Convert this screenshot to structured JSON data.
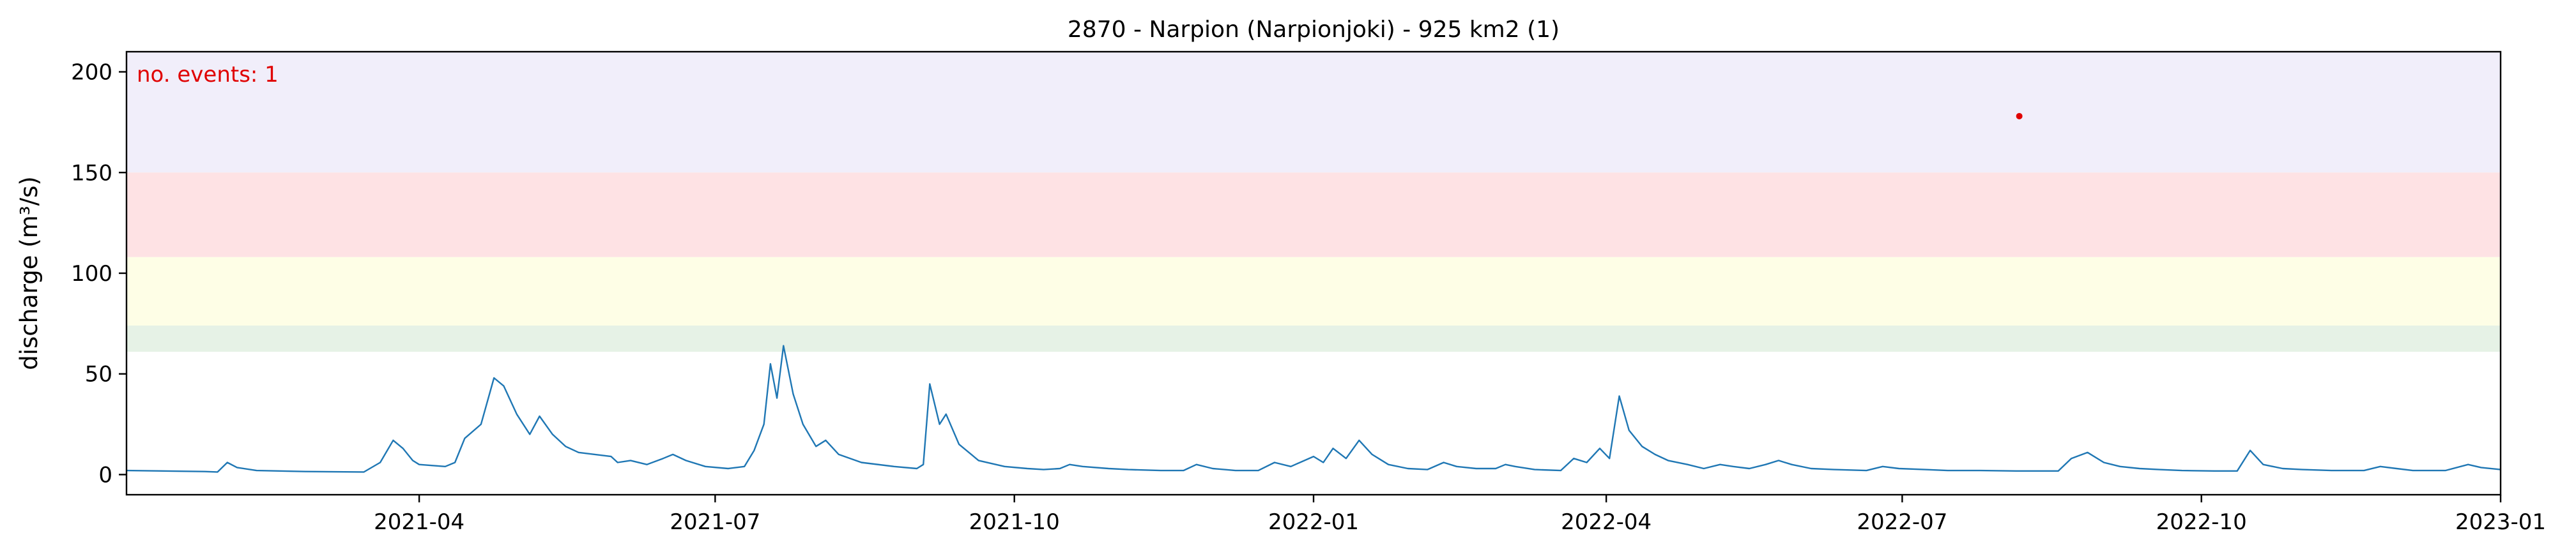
{
  "chart_data": {
    "type": "line",
    "title": "2870 - Narpion (Narpionjoki) - 925 km2 (1)",
    "xlabel": "",
    "ylabel": "discharge (m³/s)",
    "xlim": [
      "2021-01-01",
      "2023-01-01"
    ],
    "ylim": [
      -10,
      210
    ],
    "x_ticks": [
      "2021-04",
      "2021-07",
      "2021-10",
      "2022-01",
      "2022-04",
      "2022-07",
      "2022-10",
      "2023-01"
    ],
    "y_ticks": [
      0,
      50,
      100,
      150,
      200
    ],
    "grid": false,
    "annotation": "no. events: 1",
    "colors": {
      "line": "#1f77b4",
      "event": "#e00000",
      "annotation": "#e00000",
      "band_top": "#f1eefa",
      "band_red": "#fee2e4",
      "band_yellow": "#fefee6",
      "band_green": "#e6f2e6"
    },
    "threshold_bands": [
      {
        "from": 150,
        "to": 210,
        "color": "#f1eefa"
      },
      {
        "from": 108,
        "to": 150,
        "color": "#fee2e4"
      },
      {
        "from": 74,
        "to": 108,
        "color": "#fefee6"
      },
      {
        "from": 61,
        "to": 74,
        "color": "#e6f2e6"
      }
    ],
    "events": [
      {
        "x": "2022-08-06",
        "y": 178
      }
    ],
    "series": [
      {
        "points": [
          [
            "2021-01-01",
            2
          ],
          [
            "2021-01-25",
            1.5
          ],
          [
            "2021-01-29",
            1.3
          ],
          [
            "2021-02-01",
            6
          ],
          [
            "2021-02-04",
            3.5
          ],
          [
            "2021-02-10",
            2
          ],
          [
            "2021-02-25",
            1.5
          ],
          [
            "2021-03-15",
            1.3
          ],
          [
            "2021-03-20",
            6
          ],
          [
            "2021-03-24",
            17
          ],
          [
            "2021-03-27",
            13
          ],
          [
            "2021-03-30",
            7
          ],
          [
            "2021-04-01",
            5
          ],
          [
            "2021-04-09",
            4
          ],
          [
            "2021-04-12",
            6
          ],
          [
            "2021-04-15",
            18
          ],
          [
            "2021-04-20",
            25
          ],
          [
            "2021-04-24",
            48
          ],
          [
            "2021-04-27",
            44
          ],
          [
            "2021-05-01",
            30
          ],
          [
            "2021-05-05",
            20
          ],
          [
            "2021-05-08",
            29
          ],
          [
            "2021-05-12",
            20
          ],
          [
            "2021-05-16",
            14
          ],
          [
            "2021-05-20",
            11
          ],
          [
            "2021-05-25",
            10
          ],
          [
            "2021-05-30",
            9
          ],
          [
            "2021-06-01",
            6
          ],
          [
            "2021-06-05",
            7
          ],
          [
            "2021-06-10",
            5
          ],
          [
            "2021-06-15",
            8
          ],
          [
            "2021-06-18",
            10
          ],
          [
            "2021-06-22",
            7
          ],
          [
            "2021-06-28",
            4
          ],
          [
            "2021-07-05",
            3
          ],
          [
            "2021-07-10",
            4
          ],
          [
            "2021-07-13",
            12
          ],
          [
            "2021-07-16",
            25
          ],
          [
            "2021-07-18",
            55
          ],
          [
            "2021-07-20",
            38
          ],
          [
            "2021-07-22",
            64
          ],
          [
            "2021-07-25",
            40
          ],
          [
            "2021-07-28",
            25
          ],
          [
            "2021-08-01",
            14
          ],
          [
            "2021-08-04",
            17
          ],
          [
            "2021-08-08",
            10
          ],
          [
            "2021-08-15",
            6
          ],
          [
            "2021-08-25",
            4
          ],
          [
            "2021-09-01",
            3
          ],
          [
            "2021-09-03",
            5
          ],
          [
            "2021-09-05",
            45
          ],
          [
            "2021-09-08",
            25
          ],
          [
            "2021-09-10",
            30
          ],
          [
            "2021-09-14",
            15
          ],
          [
            "2021-09-20",
            7
          ],
          [
            "2021-09-28",
            4
          ],
          [
            "2021-10-05",
            3
          ],
          [
            "2021-10-10",
            2.5
          ],
          [
            "2021-10-15",
            3
          ],
          [
            "2021-10-18",
            5
          ],
          [
            "2021-10-22",
            4
          ],
          [
            "2021-10-30",
            3
          ],
          [
            "2021-11-05",
            2.5
          ],
          [
            "2021-11-15",
            2
          ],
          [
            "2021-11-22",
            2
          ],
          [
            "2021-11-26",
            5
          ],
          [
            "2021-12-01",
            3
          ],
          [
            "2021-12-08",
            2
          ],
          [
            "2021-12-15",
            2
          ],
          [
            "2021-12-20",
            6
          ],
          [
            "2021-12-25",
            4
          ],
          [
            "2022-01-01",
            9
          ],
          [
            "2022-01-04",
            6
          ],
          [
            "2022-01-07",
            13
          ],
          [
            "2022-01-11",
            8
          ],
          [
            "2022-01-15",
            17
          ],
          [
            "2022-01-19",
            10
          ],
          [
            "2022-01-24",
            5
          ],
          [
            "2022-01-30",
            3
          ],
          [
            "2022-02-05",
            2.5
          ],
          [
            "2022-02-10",
            6
          ],
          [
            "2022-02-14",
            4
          ],
          [
            "2022-02-20",
            3
          ],
          [
            "2022-02-26",
            3
          ],
          [
            "2022-03-01",
            5
          ],
          [
            "2022-03-04",
            4
          ],
          [
            "2022-03-10",
            2.5
          ],
          [
            "2022-03-18",
            2
          ],
          [
            "2022-03-22",
            8
          ],
          [
            "2022-03-26",
            6
          ],
          [
            "2022-03-30",
            13
          ],
          [
            "2022-04-02",
            8
          ],
          [
            "2022-04-05",
            39
          ],
          [
            "2022-04-08",
            22
          ],
          [
            "2022-04-12",
            14
          ],
          [
            "2022-04-16",
            10
          ],
          [
            "2022-04-20",
            7
          ],
          [
            "2022-04-26",
            5
          ],
          [
            "2022-05-01",
            3
          ],
          [
            "2022-05-06",
            5
          ],
          [
            "2022-05-10",
            4
          ],
          [
            "2022-05-15",
            3
          ],
          [
            "2022-05-20",
            5
          ],
          [
            "2022-05-24",
            7
          ],
          [
            "2022-05-28",
            5
          ],
          [
            "2022-06-03",
            3
          ],
          [
            "2022-06-10",
            2.5
          ],
          [
            "2022-06-20",
            2
          ],
          [
            "2022-06-25",
            4
          ],
          [
            "2022-06-30",
            3
          ],
          [
            "2022-07-08",
            2.5
          ],
          [
            "2022-07-15",
            2
          ],
          [
            "2022-07-25",
            2
          ],
          [
            "2022-08-05",
            1.8
          ],
          [
            "2022-08-18",
            1.8
          ],
          [
            "2022-08-22",
            8
          ],
          [
            "2022-08-27",
            11
          ],
          [
            "2022-09-01",
            6
          ],
          [
            "2022-09-06",
            4
          ],
          [
            "2022-09-12",
            3
          ],
          [
            "2022-09-18",
            2.5
          ],
          [
            "2022-09-25",
            2
          ],
          [
            "2022-10-05",
            1.8
          ],
          [
            "2022-10-12",
            1.8
          ],
          [
            "2022-10-16",
            12
          ],
          [
            "2022-10-20",
            5
          ],
          [
            "2022-10-26",
            3
          ],
          [
            "2022-11-01",
            2.5
          ],
          [
            "2022-11-10",
            2
          ],
          [
            "2022-11-20",
            2
          ],
          [
            "2022-11-25",
            4
          ],
          [
            "2022-11-30",
            3
          ],
          [
            "2022-12-05",
            2
          ],
          [
            "2022-12-15",
            2
          ],
          [
            "2022-12-22",
            5
          ],
          [
            "2022-12-26",
            3.5
          ],
          [
            "2023-01-01",
            2.5
          ]
        ]
      }
    ]
  }
}
